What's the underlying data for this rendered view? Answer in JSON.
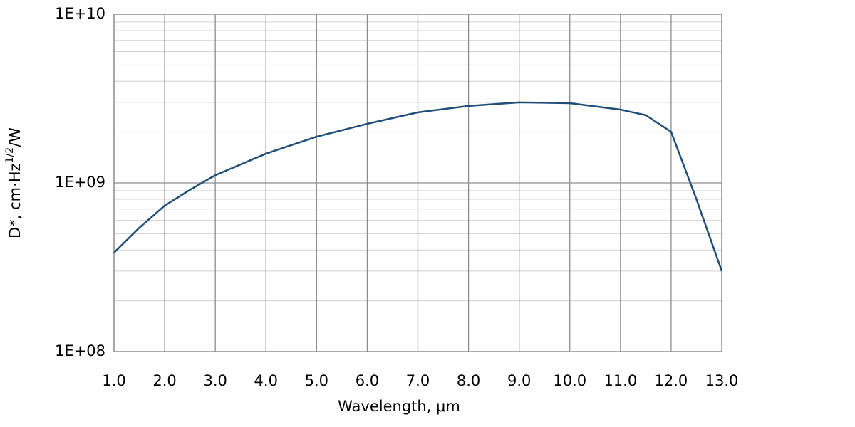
{
  "chart_data": {
    "type": "line",
    "xlabel": "Wavelength, μm",
    "ylabel": [
      "D*, cm·Hz",
      "1/2",
      "/W"
    ],
    "log_y": true,
    "grid": true,
    "xlim": [
      1,
      13
    ],
    "ylim": [
      100000000,
      10000000000
    ],
    "xticks": [
      {
        "value": 1,
        "label": "1.0"
      },
      {
        "value": 2,
        "label": "2.0"
      },
      {
        "value": 3,
        "label": "3.0"
      },
      {
        "value": 4,
        "label": "4.0"
      },
      {
        "value": 5,
        "label": "5.0"
      },
      {
        "value": 6,
        "label": "6.0"
      },
      {
        "value": 7,
        "label": "7.0"
      },
      {
        "value": 8,
        "label": "8.0"
      },
      {
        "value": 9,
        "label": "9.0"
      },
      {
        "value": 10,
        "label": "10.0"
      },
      {
        "value": 11,
        "label": "11.0"
      },
      {
        "value": 12,
        "label": "12.0"
      },
      {
        "value": 13,
        "label": "13.0"
      }
    ],
    "yticks": [
      {
        "value": 100000000,
        "label": "1E+08"
      },
      {
        "value": 1000000000,
        "label": "1E+09"
      },
      {
        "value": 10000000000,
        "label": "1E+10"
      }
    ],
    "yminor": [
      200000000,
      300000000,
      400000000,
      500000000,
      600000000,
      700000000,
      800000000,
      900000000,
      2000000000,
      3000000000,
      4000000000,
      5000000000,
      6000000000,
      7000000000,
      8000000000,
      9000000000
    ],
    "x": [
      1,
      1.5,
      2,
      2.5,
      3,
      4,
      5,
      6,
      7,
      8,
      9,
      10,
      11,
      11.5,
      12,
      12.5,
      13
    ],
    "series": [
      {
        "color": "#1f4e79",
        "values": [
          386000000,
          542000000,
          733000000,
          910000000,
          1110000000,
          1490000000,
          1880000000,
          2240000000,
          2620000000,
          2860000000,
          3000000000,
          2970000000,
          2720000000,
          2520000000,
          2010000000,
          800000000,
          300000000
        ]
      }
    ]
  }
}
